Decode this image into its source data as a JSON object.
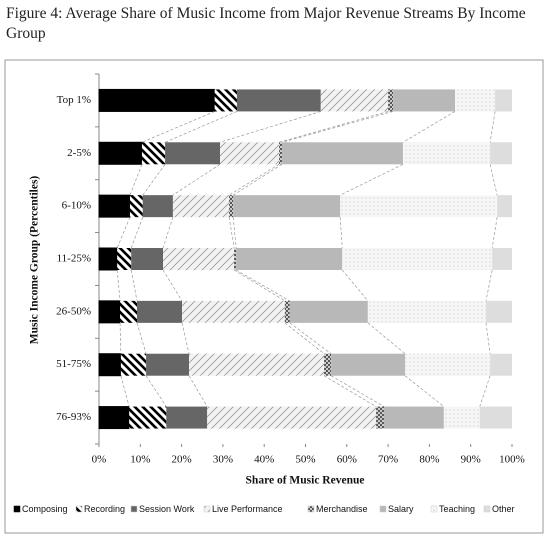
{
  "chart_data": {
    "type": "stacked-barh",
    "title": "Figure 4: Average Share of Music Income from Major Revenue Streams By Income Group",
    "x_label": "Share of Music Revenue",
    "y_label": "Music Income Group (Percentiles)",
    "categories": [
      "Top 1%",
      "2-5%",
      "6-10%",
      "11-25%",
      "26-50%",
      "51-75%",
      "76-93%"
    ],
    "series": [
      {
        "name": "Composing",
        "color": "#000000",
        "values": [
          28,
          10.4,
          7.5,
          4.4,
          5.1,
          5.3,
          7.3
        ]
      },
      {
        "name": "Recording",
        "color": "#ffffff",
        "values": [
          5.4,
          5.6,
          3.1,
          3.4,
          4.1,
          6.1,
          9
        ]
      },
      {
        "name": "Session Work",
        "color": "#666666",
        "values": [
          20.3,
          13.3,
          7.3,
          7.7,
          10.9,
          10.4,
          9.9
        ]
      },
      {
        "name": "Live Performance",
        "color": "#f2f2f2",
        "values": [
          16.3,
          14.3,
          13.6,
          17.2,
          24.9,
          32.7,
          40.9
        ]
      },
      {
        "name": "Merchandise",
        "color": "#cccccc",
        "values": [
          1.2,
          0.7,
          1,
          0.5,
          1.2,
          1.7,
          1.9
        ]
      },
      {
        "name": "Salary",
        "color": "#b8b8b8",
        "values": [
          15,
          29.3,
          25.9,
          25.7,
          18.9,
          17.9,
          14.5
        ]
      },
      {
        "name": "Teaching",
        "color": "#f6f6f6",
        "values": [
          9.7,
          21.1,
          38,
          36.3,
          28.6,
          20.6,
          8.7
        ]
      },
      {
        "name": "Other",
        "color": "#dddddd",
        "values": [
          4.1,
          5.3,
          3.6,
          4.8,
          6.3,
          5.3,
          7.8
        ]
      }
    ],
    "xlim": [
      0,
      100
    ],
    "xticks": [
      {
        "value": 0,
        "label": "0%"
      },
      {
        "value": 10,
        "label": "10%"
      },
      {
        "value": 20,
        "label": "20%"
      },
      {
        "value": 30,
        "label": "30%"
      },
      {
        "value": 40,
        "label": "40%"
      },
      {
        "value": 50,
        "label": "50%"
      },
      {
        "value": 60,
        "label": "60%"
      },
      {
        "value": 70,
        "label": "70%"
      },
      {
        "value": 80,
        "label": "80%"
      },
      {
        "value": 90,
        "label": "90%"
      },
      {
        "value": 100,
        "label": "100%"
      }
    ],
    "legend": "bottom"
  }
}
